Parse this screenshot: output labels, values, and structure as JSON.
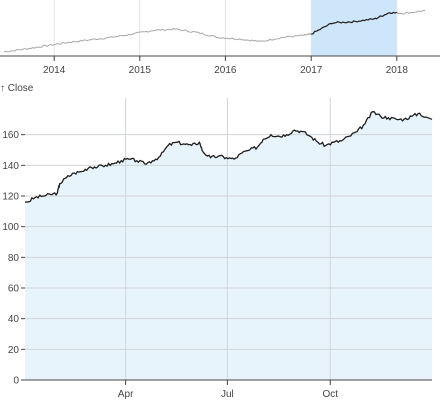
{
  "chart_data": [
    {
      "type": "line",
      "role": "overview",
      "x_range": [
        "2013-06-01",
        "2018-05-31"
      ],
      "x_ticks": [
        "2014",
        "2015",
        "2016",
        "2017",
        "2018"
      ],
      "x_tick_dates": [
        "2014-01-01",
        "2015-01-01",
        "2016-01-01",
        "2017-01-01",
        "2018-01-01"
      ],
      "brush": {
        "start": "2017-01-01",
        "end": "2018-01-01"
      },
      "series": [
        {
          "x": [
            "2013-06",
            "2013-09",
            "2013-12",
            "2014-03",
            "2014-06",
            "2014-09",
            "2014-12",
            "2015-03",
            "2015-06",
            "2015-09",
            "2015-12",
            "2016-03",
            "2016-06",
            "2016-09",
            "2016-12",
            "2017-01",
            "2017-04",
            "2017-07",
            "2017-10",
            "2017-12",
            "2018-02",
            "2018-05"
          ],
          "values": [
            75,
            82,
            90,
            98,
            104,
            110,
            118,
            127,
            130,
            122,
            110,
            106,
            100,
            110,
            115,
            118,
            145,
            148,
            155,
            170,
            168,
            175
          ]
        }
      ],
      "colors": {
        "line": "#a8a8a8",
        "brush_fill": "#cde6fa",
        "brush_line": "#1f1f1f"
      }
    },
    {
      "type": "area",
      "role": "detail",
      "ylabel": "↑ Close",
      "ylim": [
        0,
        180
      ],
      "y_ticks": [
        0,
        20,
        40,
        60,
        80,
        100,
        120,
        140,
        160
      ],
      "x_range": [
        "2017-01-01",
        "2017-12-31"
      ],
      "x_ticks": [
        "Apr",
        "Jul",
        "Oct"
      ],
      "x_tick_dates": [
        "2017-04-01",
        "2017-07-01",
        "2017-10-01"
      ],
      "grid": true,
      "series": [
        {
          "x": [
            "2017-01-03",
            "2017-01-10",
            "2017-01-17",
            "2017-01-24",
            "2017-01-30",
            "2017-02-01",
            "2017-02-07",
            "2017-02-14",
            "2017-02-21",
            "2017-02-28",
            "2017-03-07",
            "2017-03-14",
            "2017-03-21",
            "2017-03-28",
            "2017-04-04",
            "2017-04-11",
            "2017-04-18",
            "2017-04-25",
            "2017-05-02",
            "2017-05-09",
            "2017-05-16",
            "2017-05-23",
            "2017-05-30",
            "2017-06-06",
            "2017-06-09",
            "2017-06-16",
            "2017-06-23",
            "2017-06-30",
            "2017-07-07",
            "2017-07-14",
            "2017-07-21",
            "2017-07-28",
            "2017-08-02",
            "2017-08-09",
            "2017-08-16",
            "2017-08-23",
            "2017-08-30",
            "2017-09-06",
            "2017-09-13",
            "2017-09-20",
            "2017-09-27",
            "2017-10-04",
            "2017-10-11",
            "2017-10-18",
            "2017-10-25",
            "2017-11-01",
            "2017-11-08",
            "2017-11-15",
            "2017-11-22",
            "2017-11-29",
            "2017-12-06",
            "2017-12-13",
            "2017-12-20",
            "2017-12-27"
          ],
          "values": [
            116,
            119,
            120,
            121,
            122,
            128,
            132,
            135,
            136,
            139,
            139,
            140,
            141,
            143,
            144,
            143,
            141,
            143,
            146,
            153,
            155,
            154,
            153,
            155,
            149,
            145,
            146,
            145,
            144,
            148,
            150,
            152,
            157,
            160,
            159,
            160,
            163,
            162,
            159,
            155,
            153,
            155,
            156,
            159,
            162,
            167,
            175,
            172,
            171,
            170,
            170,
            172,
            174,
            170
          ]
        }
      ],
      "colors": {
        "line": "#1f1f1f",
        "area_fill": "#e4f2fc",
        "grid": "#d0d4d9"
      }
    }
  ]
}
